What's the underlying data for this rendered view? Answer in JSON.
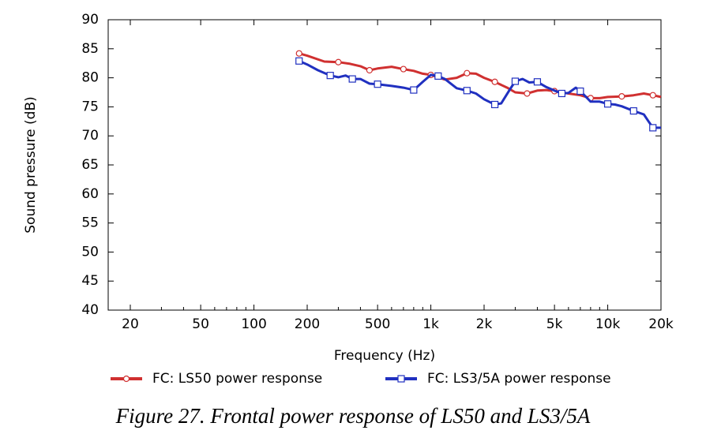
{
  "caption": "Figure 27. Frontal power response of LS50 and LS3/5A",
  "chart_data": {
    "type": "line",
    "xlabel": "Frequency  (Hz)",
    "ylabel": "Sound pressure  (dB)",
    "xscale": "log",
    "xlim": [
      15,
      20000
    ],
    "ylim": [
      40,
      90
    ],
    "xticks": [
      20,
      50,
      100,
      200,
      500,
      1000,
      2000,
      5000,
      10000,
      20000
    ],
    "xtick_labels": [
      "20",
      "50",
      "100",
      "200",
      "500",
      "1k",
      "2k",
      "5k",
      "10k",
      "20k"
    ],
    "yticks": [
      40,
      45,
      50,
      55,
      60,
      65,
      70,
      75,
      80,
      85,
      90
    ],
    "grid": false,
    "legend_position": "bottom",
    "series": [
      {
        "name": "FC: LS50 power response",
        "color": "#d03030",
        "marker": "circle",
        "x": [
          180,
          200,
          250,
          300,
          350,
          400,
          450,
          500,
          600,
          700,
          800,
          900,
          1000,
          1200,
          1400,
          1600,
          1800,
          2000,
          2300,
          2700,
          3000,
          3500,
          4000,
          4500,
          5000,
          6000,
          7000,
          8000,
          9000,
          10000,
          12000,
          14000,
          16000,
          18000,
          20000
        ],
        "y": [
          84.2,
          83.8,
          82.8,
          82.7,
          82.4,
          82.0,
          81.3,
          81.6,
          81.9,
          81.5,
          81.2,
          80.7,
          80.5,
          79.7,
          80.0,
          80.8,
          80.7,
          80.0,
          79.3,
          78.3,
          77.5,
          77.3,
          77.8,
          77.9,
          77.7,
          77.3,
          77.0,
          76.5,
          76.5,
          76.7,
          76.8,
          77.0,
          77.3,
          77.0,
          76.7
        ]
      },
      {
        "name": "FC: LS3/5A power response",
        "color": "#2030c0",
        "marker": "square",
        "x": [
          180,
          200,
          230,
          270,
          300,
          330,
          360,
          400,
          450,
          500,
          600,
          700,
          800,
          900,
          1000,
          1100,
          1200,
          1400,
          1600,
          1800,
          2000,
          2300,
          2500,
          2800,
          3000,
          3300,
          3600,
          4000,
          4500,
          5000,
          5500,
          6000,
          6600,
          7000,
          8000,
          9000,
          10000,
          11000,
          12000,
          14000,
          16000,
          17000,
          18000,
          20000
        ],
        "y": [
          82.9,
          82.3,
          81.3,
          80.4,
          80.1,
          80.4,
          79.8,
          79.8,
          79.0,
          78.9,
          78.6,
          78.3,
          77.9,
          79.3,
          80.5,
          80.3,
          79.8,
          78.2,
          77.8,
          77.3,
          76.3,
          75.4,
          75.6,
          78.0,
          79.4,
          79.8,
          79.2,
          79.3,
          78.4,
          77.8,
          77.3,
          77.4,
          78.3,
          77.7,
          75.9,
          75.9,
          75.5,
          75.4,
          75.1,
          74.3,
          73.7,
          72.5,
          71.4,
          71.4
        ]
      }
    ]
  }
}
